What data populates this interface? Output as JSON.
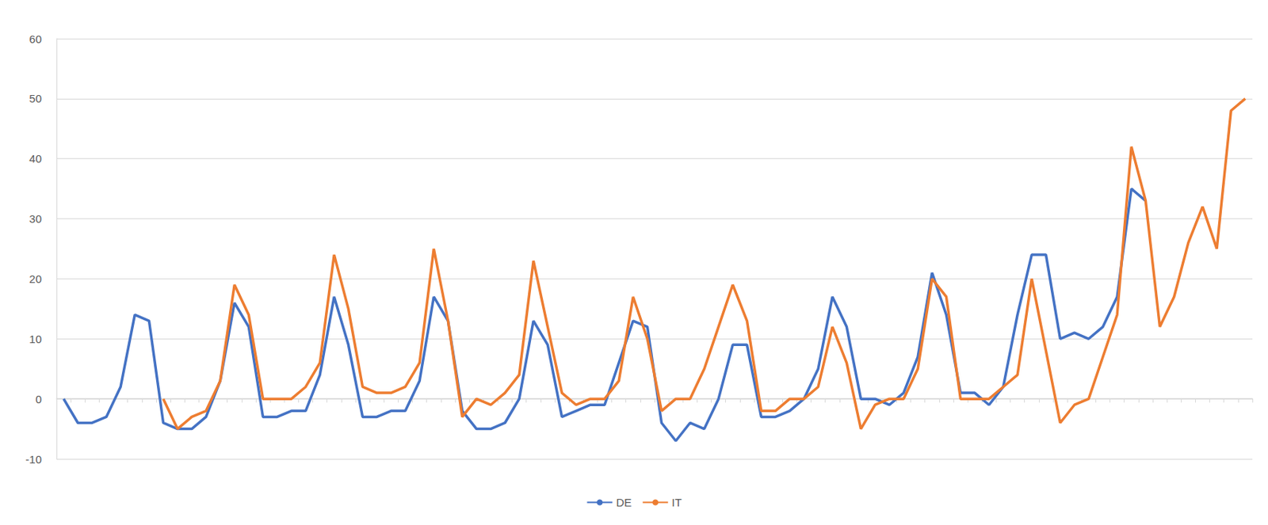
{
  "chart_data": {
    "type": "line",
    "categories": [
      null,
      null,
      null,
      null,
      null,
      null,
      null,
      null,
      null,
      null,
      null,
      null,
      null,
      null,
      null,
      null,
      null,
      null,
      null,
      null,
      null,
      null,
      null,
      null,
      null,
      null,
      null,
      null,
      null,
      null,
      null,
      null,
      null,
      null,
      null,
      null,
      null,
      null,
      null,
      null,
      null,
      null,
      null,
      null,
      null,
      null,
      null,
      null,
      null,
      null,
      null,
      null,
      null,
      null,
      null,
      null,
      null,
      null,
      null,
      null,
      null,
      null,
      null,
      null,
      null,
      null,
      null,
      null,
      null,
      null,
      null,
      null,
      null,
      null,
      null,
      null,
      null,
      null,
      null,
      null,
      null,
      null,
      null,
      null
    ],
    "series": [
      {
        "name": "DE",
        "color": "#4472c4",
        "values": [
          0,
          -4,
          -4,
          -3,
          2,
          14,
          13,
          -4,
          -5,
          -5,
          -3,
          3,
          16,
          12,
          -3,
          -3,
          -2,
          -2,
          4,
          17,
          9,
          -3,
          -3,
          -2,
          -2,
          3,
          17,
          13,
          -2,
          -5,
          -5,
          -4,
          0,
          13,
          9,
          -3,
          -2,
          -1,
          -1,
          6,
          13,
          12,
          -4,
          -7,
          -4,
          -5,
          0,
          9,
          9,
          -3,
          -3,
          -2,
          0,
          5,
          17,
          12,
          0,
          0,
          -1,
          1,
          7,
          21,
          14,
          1,
          1,
          -1,
          2,
          14,
          24,
          24,
          10,
          11,
          10,
          12,
          17,
          35,
          33,
          null,
          null,
          null,
          null,
          null,
          null,
          null
        ]
      },
      {
        "name": "IT",
        "color": "#ed7d31",
        "values": [
          null,
          null,
          null,
          null,
          null,
          null,
          null,
          0,
          -5,
          -3,
          -2,
          3,
          19,
          14,
          0,
          0,
          0,
          2,
          6,
          24,
          15,
          2,
          1,
          1,
          2,
          6,
          25,
          13,
          -3,
          0,
          -1,
          1,
          4,
          23,
          12,
          1,
          -1,
          0,
          0,
          3,
          17,
          10,
          -2,
          0,
          0,
          5,
          12,
          19,
          13,
          -2,
          -2,
          0,
          0,
          2,
          12,
          6,
          -5,
          -1,
          0,
          0,
          5,
          20,
          17,
          0,
          0,
          0,
          2,
          4,
          20,
          8,
          -4,
          -1,
          0,
          7,
          14,
          42,
          33,
          12,
          17,
          26,
          32,
          25,
          48,
          50
        ]
      }
    ],
    "ylim": [
      -10,
      60
    ],
    "yticks": [
      -10,
      0,
      10,
      20,
      30,
      40,
      50,
      60
    ],
    "grid": true,
    "legend": "bottom",
    "tick_labels": "y"
  }
}
